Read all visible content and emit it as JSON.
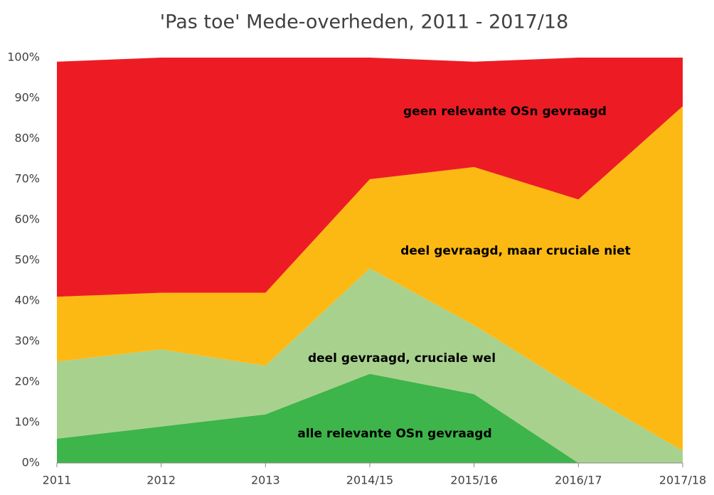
{
  "chart_data": {
    "type": "stacked_area",
    "title": "'Pas toe' Mede-overheden, 2011 - 2017/18",
    "categories": [
      "2011",
      "2012",
      "2013",
      "2014/15",
      "2015/16",
      "2016/17",
      "2017/18"
    ],
    "series": [
      {
        "name": "alle relevante OSn gevraagd",
        "color": "#3db54a",
        "values": [
          6,
          9,
          12,
          22,
          17,
          0,
          0
        ]
      },
      {
        "name": "deel gevraagd, cruciale wel",
        "color": "#a9d18e",
        "values": [
          19,
          19,
          12,
          26,
          17,
          18,
          3
        ]
      },
      {
        "name": "deel gevraagd, maar cruciale niet",
        "color": "#fdb913",
        "values": [
          16,
          14,
          18,
          22,
          39,
          47,
          85
        ]
      },
      {
        "name": "geen relevante OSn gevraagd",
        "color": "#ed1c24",
        "values": [
          58,
          58,
          58,
          30,
          26,
          35,
          12
        ]
      }
    ],
    "ylim": [
      0,
      100
    ],
    "yticks": [
      {
        "value": 0,
        "label": "0%"
      },
      {
        "value": 10,
        "label": "10%"
      },
      {
        "value": 20,
        "label": "20%"
      },
      {
        "value": 30,
        "label": "30%"
      },
      {
        "value": 40,
        "label": "40%"
      },
      {
        "value": 50,
        "label": "50%"
      },
      {
        "value": 60,
        "label": "60%"
      },
      {
        "value": 70,
        "label": "70%"
      },
      {
        "value": 80,
        "label": "80%"
      },
      {
        "value": 90,
        "label": "90%"
      },
      {
        "value": 100,
        "label": "100%"
      }
    ],
    "grid": false
  }
}
